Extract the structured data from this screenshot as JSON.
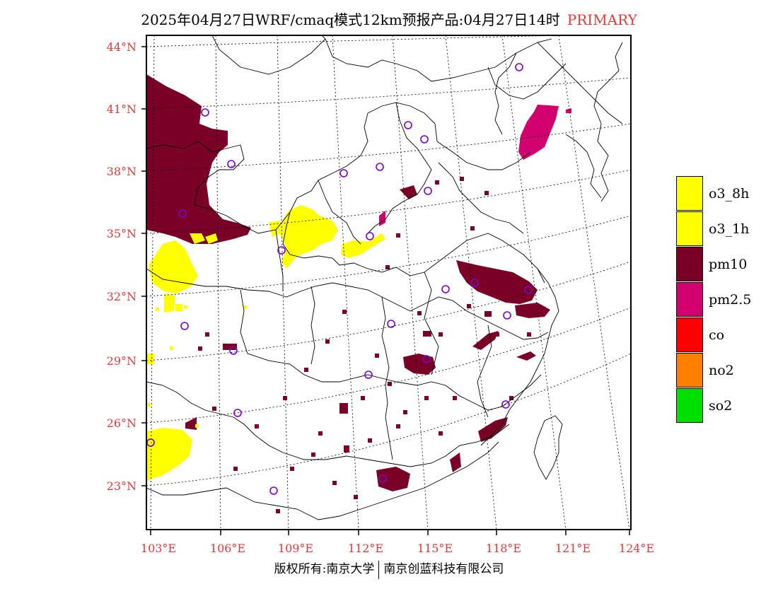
{
  "title": {
    "main": "2025年04月27日WRF/cmaq模式12km预报产品:04月27日14时",
    "tag": "PRIMARY",
    "tag_color": "#e03a3a"
  },
  "map": {
    "lat_labels": [
      "44°N",
      "41°N",
      "38°N",
      "35°N",
      "32°N",
      "29°N",
      "26°N",
      "23°N"
    ],
    "lon_labels": [
      "103°E",
      "106°E",
      "109°E",
      "112°E",
      "115°E",
      "118°E",
      "121°E",
      "124°E"
    ],
    "label_color": "#e03a3a"
  },
  "legend": {
    "items": [
      {
        "label": "o3_8h",
        "color": "#ffff00"
      },
      {
        "label": "o3_1h",
        "color": "#ffff00"
      },
      {
        "label": "pm10",
        "color": "#7b0028"
      },
      {
        "label": "pm2.5",
        "color": "#d1006e"
      },
      {
        "label": "co",
        "color": "#ff0000"
      },
      {
        "label": "no2",
        "color": "#ff7f00"
      },
      {
        "label": "so2",
        "color": "#00e000"
      }
    ]
  },
  "footer": {
    "left": "版权所有:南京大学",
    "right": "南京创蓝科技有限公司"
  }
}
